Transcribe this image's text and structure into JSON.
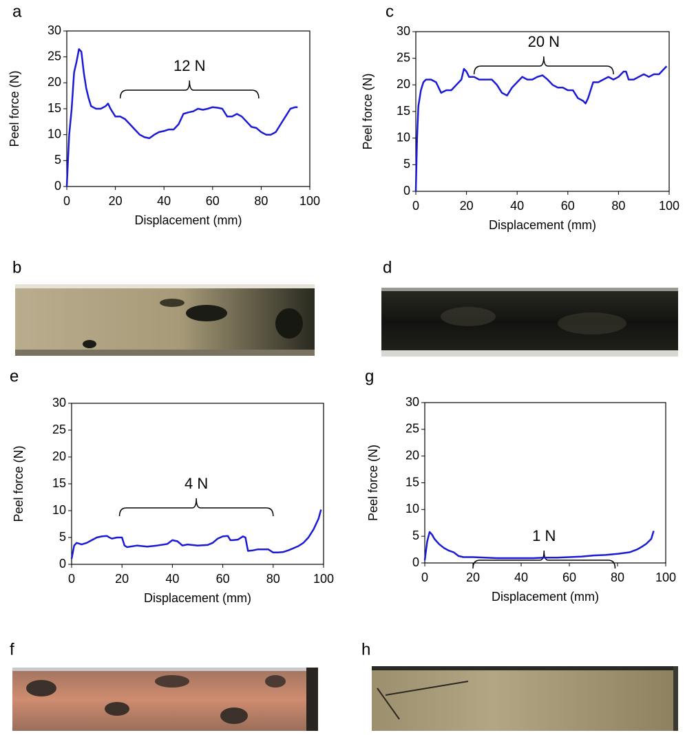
{
  "chart_data": [
    {
      "type": "line",
      "panel_label": "a",
      "annotation": "12 N",
      "xlabel": "Displacement (mm)",
      "ylabel": "Peel force (N)",
      "color": "#1a1ad6",
      "xlim": [
        0,
        100
      ],
      "ylim": [
        0,
        30
      ],
      "xticks": [
        0,
        20,
        40,
        60,
        80,
        100
      ],
      "yticks": [
        0,
        5,
        10,
        15,
        20,
        25,
        30
      ],
      "x": [
        0,
        1,
        2,
        3,
        4,
        5,
        6,
        7,
        8,
        9,
        10,
        12,
        14,
        16,
        17,
        18,
        20,
        22,
        24,
        26,
        28,
        30,
        32,
        34,
        36,
        38,
        40,
        42,
        44,
        46,
        48,
        50,
        52,
        54,
        56,
        58,
        60,
        62,
        64,
        66,
        68,
        70,
        72,
        74,
        76,
        78,
        80,
        82,
        84,
        86,
        88,
        90,
        92,
        94,
        95
      ],
      "values": [
        0,
        10,
        15,
        22,
        24,
        26.5,
        26,
        22,
        19,
        17,
        15.5,
        15,
        15,
        15.5,
        16,
        15,
        13.5,
        13.5,
        13,
        12,
        11,
        10,
        9.5,
        9.3,
        10,
        10.5,
        10.7,
        11,
        11,
        12,
        14,
        14.3,
        14.5,
        15,
        14.8,
        15,
        15.3,
        15.2,
        15,
        13.5,
        13.5,
        14,
        13.5,
        12.5,
        11.5,
        11.3,
        10.5,
        10,
        10,
        10.5,
        12,
        13.5,
        15,
        15.3,
        15.3
      ]
    },
    {
      "type": "line",
      "panel_label": "c",
      "annotation": "20 N",
      "xlabel": "Displacement (mm)",
      "ylabel": "Peel force (N)",
      "color": "#1a1ad6",
      "xlim": [
        0,
        100
      ],
      "ylim": [
        0,
        30
      ],
      "xticks": [
        0,
        20,
        40,
        60,
        80,
        100
      ],
      "yticks": [
        0,
        5,
        10,
        15,
        20,
        25,
        30
      ],
      "x": [
        0,
        0.5,
        1,
        2,
        3,
        4,
        6,
        8,
        10,
        12,
        14,
        16,
        18,
        19,
        20,
        21,
        23,
        25,
        28,
        30,
        32,
        34,
        36,
        38,
        40,
        42,
        44,
        46,
        48,
        50,
        52,
        54,
        56,
        58,
        60,
        62,
        64,
        66,
        67,
        68,
        70,
        72,
        74,
        76,
        78,
        80,
        82,
        83,
        84,
        86,
        88,
        90,
        92,
        94,
        96,
        98,
        99
      ],
      "values": [
        0,
        10,
        16,
        19,
        20.5,
        21,
        21,
        20.5,
        18.5,
        19,
        19,
        20,
        21,
        23,
        22.5,
        21.5,
        21.5,
        21,
        21,
        21,
        20,
        18.5,
        18,
        19.5,
        20.5,
        21.5,
        21,
        21,
        21.5,
        21.8,
        21,
        20,
        19.5,
        19.5,
        19,
        19,
        17.5,
        17,
        16.5,
        17.5,
        20.5,
        20.5,
        21,
        21.5,
        21,
        21.5,
        22.5,
        22.5,
        21,
        21,
        21.5,
        22,
        21.5,
        22,
        22,
        23,
        23.5
      ]
    },
    {
      "type": "line",
      "panel_label": "e",
      "annotation": "4 N",
      "xlabel": "Displacement (mm)",
      "ylabel": "Peel force (N)",
      "color": "#1a1ad6",
      "xlim": [
        0,
        100
      ],
      "ylim": [
        0,
        30
      ],
      "xticks": [
        0,
        20,
        40,
        60,
        80,
        100
      ],
      "yticks": [
        0,
        5,
        10,
        15,
        20,
        25,
        30
      ],
      "x": [
        0,
        1,
        2,
        4,
        6,
        8,
        10,
        12,
        14,
        15,
        16,
        18,
        20,
        21,
        22,
        26,
        30,
        34,
        38,
        40,
        42,
        44,
        46,
        50,
        54,
        56,
        58,
        60,
        62,
        63,
        64,
        66,
        68,
        69,
        70,
        72,
        74,
        76,
        78,
        80,
        82,
        84,
        86,
        88,
        90,
        92,
        94,
        96,
        98,
        99
      ],
      "values": [
        1,
        3.5,
        4,
        3.7,
        4,
        4.5,
        5,
        5.2,
        5.3,
        5,
        4.8,
        5,
        5,
        3.5,
        3.2,
        3.5,
        3.3,
        3.5,
        3.8,
        4.5,
        4.3,
        3.5,
        3.7,
        3.5,
        3.6,
        4,
        4.8,
        5.2,
        5.3,
        4.5,
        4.5,
        4.6,
        5.2,
        5,
        2.5,
        2.6,
        2.8,
        2.8,
        2.8,
        2.2,
        2.2,
        2.3,
        2.6,
        3,
        3.4,
        4,
        5,
        6.5,
        8.5,
        10.2
      ]
    },
    {
      "type": "line",
      "panel_label": "g",
      "annotation": "1 N",
      "xlabel": "Displacement (mm)",
      "ylabel": "Peel force (N)",
      "color": "#1a1ad6",
      "xlim": [
        0,
        100
      ],
      "ylim": [
        0,
        30
      ],
      "xticks": [
        0,
        20,
        40,
        60,
        80,
        100
      ],
      "yticks": [
        0,
        5,
        10,
        15,
        20,
        25,
        30
      ],
      "x": [
        0,
        1,
        2,
        3,
        4,
        6,
        8,
        10,
        12,
        14,
        16,
        20,
        25,
        30,
        35,
        40,
        45,
        50,
        55,
        60,
        65,
        70,
        75,
        80,
        85,
        88,
        90,
        92,
        94,
        95
      ],
      "values": [
        0.5,
        4,
        5.8,
        5.3,
        4.5,
        3.5,
        2.8,
        2.3,
        2,
        1.3,
        1.1,
        1.1,
        1,
        0.9,
        0.9,
        0.9,
        0.9,
        1,
        1,
        1.1,
        1.2,
        1.4,
        1.5,
        1.7,
        2,
        2.5,
        3,
        3.6,
        4.5,
        6
      ]
    }
  ],
  "photos": [
    {
      "label": "b"
    },
    {
      "label": "d"
    },
    {
      "label": "f"
    },
    {
      "label": "h"
    }
  ]
}
